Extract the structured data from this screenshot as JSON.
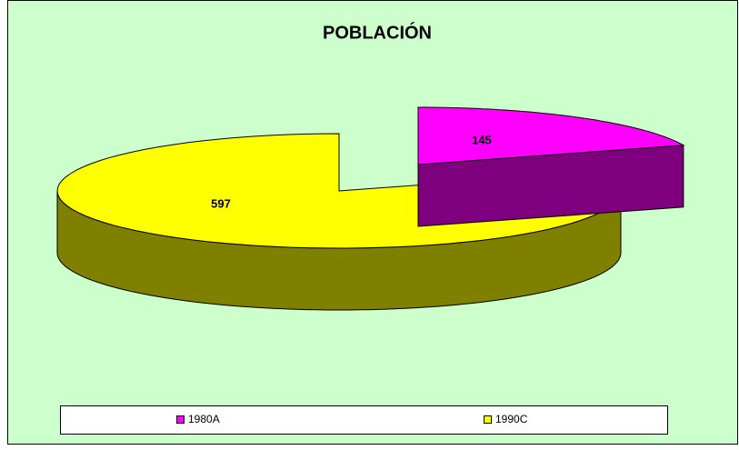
{
  "chart_data": {
    "type": "pie3d",
    "title": "POBLACIÓN",
    "categories": [
      "1980A",
      "1990C"
    ],
    "values": [
      145,
      597
    ],
    "colors": [
      "#ff00ff",
      "#ffff00"
    ],
    "legend": "bottom"
  }
}
